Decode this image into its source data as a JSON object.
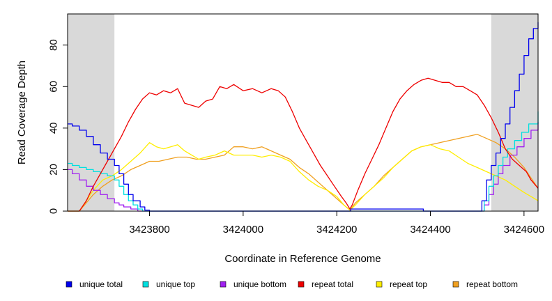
{
  "chart_data": {
    "type": "line",
    "title": "",
    "xlabel": "Coordinate in Reference Genome",
    "ylabel": "Read Coverage Depth",
    "xlim": [
      3423625,
      3424630
    ],
    "ylim": [
      0,
      95
    ],
    "x_ticks": [
      3423800,
      3424000,
      3424200,
      3424400,
      3424600
    ],
    "y_ticks": [
      0,
      20,
      40,
      60,
      80
    ],
    "x_tick_labels": [
      "3423800",
      "3424000",
      "3424200",
      "3424400",
      "3424600"
    ],
    "y_tick_labels": [
      "0",
      "20",
      "40",
      "60",
      "80"
    ],
    "shaded_regions": [
      [
        3423625,
        3423725
      ],
      [
        3424530,
        3424630
      ]
    ],
    "grid": false,
    "legend_position": "bottom",
    "series": [
      {
        "name": "unique total",
        "color": "#0000ee",
        "step": true,
        "points": [
          [
            3423625,
            42
          ],
          [
            3423635,
            41
          ],
          [
            3423650,
            39
          ],
          [
            3423665,
            36
          ],
          [
            3423680,
            32
          ],
          [
            3423695,
            28
          ],
          [
            3423710,
            25
          ],
          [
            3423725,
            22
          ],
          [
            3423735,
            18
          ],
          [
            3423745,
            13
          ],
          [
            3423755,
            8
          ],
          [
            3423765,
            5
          ],
          [
            3423780,
            2
          ],
          [
            3423790,
            0.5
          ],
          [
            3423800,
            0
          ],
          [
            3424225,
            0
          ],
          [
            3424230,
            1
          ],
          [
            3424380,
            1
          ],
          [
            3424385,
            0
          ],
          [
            3424505,
            0
          ],
          [
            3424510,
            5
          ],
          [
            3424520,
            15
          ],
          [
            3424530,
            22
          ],
          [
            3424540,
            28
          ],
          [
            3424550,
            35
          ],
          [
            3424560,
            42
          ],
          [
            3424570,
            50
          ],
          [
            3424580,
            58
          ],
          [
            3424590,
            66
          ],
          [
            3424600,
            75
          ],
          [
            3424610,
            83
          ],
          [
            3424620,
            88
          ],
          [
            3424630,
            91
          ]
        ]
      },
      {
        "name": "unique top",
        "color": "#00e0e0",
        "step": true,
        "points": [
          [
            3423625,
            23
          ],
          [
            3423635,
            22
          ],
          [
            3423650,
            21
          ],
          [
            3423665,
            20
          ],
          [
            3423680,
            19
          ],
          [
            3423695,
            18
          ],
          [
            3423710,
            17
          ],
          [
            3423725,
            15
          ],
          [
            3423735,
            12
          ],
          [
            3423745,
            8
          ],
          [
            3423755,
            5
          ],
          [
            3423765,
            3
          ],
          [
            3423775,
            1
          ],
          [
            3423785,
            0
          ],
          [
            3424505,
            0
          ],
          [
            3424515,
            5
          ],
          [
            3424525,
            12
          ],
          [
            3424535,
            17
          ],
          [
            3424545,
            22
          ],
          [
            3424555,
            26
          ],
          [
            3424565,
            30
          ],
          [
            3424580,
            34
          ],
          [
            3424595,
            38
          ],
          [
            3424610,
            42
          ],
          [
            3424630,
            48
          ]
        ]
      },
      {
        "name": "unique bottom",
        "color": "#a020f0",
        "step": true,
        "points": [
          [
            3423625,
            20
          ],
          [
            3423635,
            18
          ],
          [
            3423650,
            15
          ],
          [
            3423665,
            12
          ],
          [
            3423680,
            10
          ],
          [
            3423695,
            8
          ],
          [
            3423710,
            6
          ],
          [
            3423725,
            4
          ],
          [
            3423735,
            3
          ],
          [
            3423745,
            2
          ],
          [
            3423760,
            1
          ],
          [
            3423775,
            0
          ],
          [
            3424505,
            0
          ],
          [
            3424515,
            3
          ],
          [
            3424525,
            8
          ],
          [
            3424535,
            13
          ],
          [
            3424545,
            18
          ],
          [
            3424555,
            22
          ],
          [
            3424570,
            27
          ],
          [
            3424585,
            31
          ],
          [
            3424600,
            35
          ],
          [
            3424615,
            39
          ],
          [
            3424630,
            43
          ]
        ]
      },
      {
        "name": "repeat total",
        "color": "#ee0000",
        "step": false,
        "points": [
          [
            3423625,
            0
          ],
          [
            3423650,
            0
          ],
          [
            3423665,
            5
          ],
          [
            3423680,
            12
          ],
          [
            3423695,
            18
          ],
          [
            3423710,
            24
          ],
          [
            3423725,
            30
          ],
          [
            3423740,
            36
          ],
          [
            3423755,
            43
          ],
          [
            3423770,
            49
          ],
          [
            3423785,
            54
          ],
          [
            3423800,
            57
          ],
          [
            3423815,
            56
          ],
          [
            3423830,
            58
          ],
          [
            3423845,
            57
          ],
          [
            3423860,
            59
          ],
          [
            3423875,
            52
          ],
          [
            3423890,
            51
          ],
          [
            3423905,
            50
          ],
          [
            3423920,
            53
          ],
          [
            3423935,
            54
          ],
          [
            3423950,
            60
          ],
          [
            3423965,
            59
          ],
          [
            3423980,
            61
          ],
          [
            3424000,
            58
          ],
          [
            3424020,
            59
          ],
          [
            3424040,
            57
          ],
          [
            3424060,
            59
          ],
          [
            3424075,
            58
          ],
          [
            3424090,
            55
          ],
          [
            3424105,
            48
          ],
          [
            3424120,
            40
          ],
          [
            3424135,
            34
          ],
          [
            3424150,
            28
          ],
          [
            3424165,
            22
          ],
          [
            3424180,
            17
          ],
          [
            3424195,
            12
          ],
          [
            3424210,
            7
          ],
          [
            3424220,
            4
          ],
          [
            3424228,
            1
          ],
          [
            3424233,
            3
          ],
          [
            3424245,
            10
          ],
          [
            3424260,
            18
          ],
          [
            3424275,
            25
          ],
          [
            3424290,
            32
          ],
          [
            3424305,
            40
          ],
          [
            3424320,
            48
          ],
          [
            3424335,
            54
          ],
          [
            3424350,
            58
          ],
          [
            3424365,
            61
          ],
          [
            3424380,
            63
          ],
          [
            3424395,
            64
          ],
          [
            3424410,
            63
          ],
          [
            3424425,
            62
          ],
          [
            3424440,
            62
          ],
          [
            3424455,
            60
          ],
          [
            3424470,
            60
          ],
          [
            3424485,
            58
          ],
          [
            3424500,
            56
          ],
          [
            3424515,
            51
          ],
          [
            3424530,
            45
          ],
          [
            3424545,
            38
          ],
          [
            3424560,
            30
          ],
          [
            3424575,
            25
          ],
          [
            3424590,
            22
          ],
          [
            3424605,
            19
          ],
          [
            3424615,
            15
          ],
          [
            3424630,
            11
          ]
        ]
      },
      {
        "name": "repeat top",
        "color": "#ffee00",
        "step": false,
        "points": [
          [
            3423625,
            0
          ],
          [
            3423650,
            0
          ],
          [
            3423665,
            5
          ],
          [
            3423680,
            10
          ],
          [
            3423700,
            15
          ],
          [
            3423720,
            17
          ],
          [
            3423740,
            20
          ],
          [
            3423760,
            24
          ],
          [
            3423780,
            28
          ],
          [
            3423800,
            33
          ],
          [
            3423815,
            31
          ],
          [
            3423830,
            30
          ],
          [
            3423845,
            31
          ],
          [
            3423860,
            32
          ],
          [
            3423875,
            29
          ],
          [
            3423890,
            27
          ],
          [
            3423905,
            25
          ],
          [
            3423920,
            26
          ],
          [
            3423940,
            27
          ],
          [
            3423960,
            29
          ],
          [
            3423980,
            27
          ],
          [
            3424000,
            27
          ],
          [
            3424020,
            27
          ],
          [
            3424040,
            26
          ],
          [
            3424060,
            27
          ],
          [
            3424080,
            26
          ],
          [
            3424100,
            24
          ],
          [
            3424120,
            19
          ],
          [
            3424140,
            15
          ],
          [
            3424160,
            12
          ],
          [
            3424180,
            10
          ],
          [
            3424200,
            7
          ],
          [
            3424215,
            3
          ],
          [
            3424228,
            0.5
          ],
          [
            3424240,
            3
          ],
          [
            3424260,
            8
          ],
          [
            3424280,
            12
          ],
          [
            3424300,
            16
          ],
          [
            3424320,
            21
          ],
          [
            3424340,
            25
          ],
          [
            3424360,
            29
          ],
          [
            3424380,
            31
          ],
          [
            3424400,
            32
          ],
          [
            3424420,
            30
          ],
          [
            3424440,
            29
          ],
          [
            3424460,
            26
          ],
          [
            3424480,
            23
          ],
          [
            3424500,
            21
          ],
          [
            3424520,
            19
          ],
          [
            3424540,
            17
          ],
          [
            3424560,
            15
          ],
          [
            3424580,
            12
          ],
          [
            3424600,
            9
          ],
          [
            3424615,
            7
          ],
          [
            3424630,
            5
          ]
        ]
      },
      {
        "name": "repeat bottom",
        "color": "#f0a020",
        "step": false,
        "points": [
          [
            3423625,
            0
          ],
          [
            3423650,
            0
          ],
          [
            3423665,
            4
          ],
          [
            3423680,
            8
          ],
          [
            3423700,
            12
          ],
          [
            3423720,
            15
          ],
          [
            3423740,
            17
          ],
          [
            3423760,
            20
          ],
          [
            3423780,
            22
          ],
          [
            3423800,
            24
          ],
          [
            3423820,
            24
          ],
          [
            3423840,
            25
          ],
          [
            3423860,
            26
          ],
          [
            3423880,
            26
          ],
          [
            3423900,
            25
          ],
          [
            3423920,
            25
          ],
          [
            3423940,
            26
          ],
          [
            3423960,
            27
          ],
          [
            3423980,
            31
          ],
          [
            3424000,
            31
          ],
          [
            3424020,
            30
          ],
          [
            3424040,
            31
          ],
          [
            3424060,
            29
          ],
          [
            3424080,
            27
          ],
          [
            3424100,
            25
          ],
          [
            3424120,
            21
          ],
          [
            3424140,
            18
          ],
          [
            3424160,
            14
          ],
          [
            3424180,
            10
          ],
          [
            3424200,
            6
          ],
          [
            3424215,
            3
          ],
          [
            3424228,
            0.5
          ],
          [
            3424240,
            4
          ],
          [
            3424260,
            8
          ],
          [
            3424280,
            12
          ],
          [
            3424300,
            17
          ],
          [
            3424320,
            21
          ],
          [
            3424340,
            25
          ],
          [
            3424360,
            29
          ],
          [
            3424380,
            31
          ],
          [
            3424400,
            32
          ],
          [
            3424420,
            33
          ],
          [
            3424440,
            34
          ],
          [
            3424460,
            35
          ],
          [
            3424480,
            36
          ],
          [
            3424500,
            37
          ],
          [
            3424520,
            35
          ],
          [
            3424540,
            33
          ],
          [
            3424560,
            30
          ],
          [
            3424580,
            26
          ],
          [
            3424600,
            21
          ],
          [
            3424615,
            16
          ],
          [
            3424630,
            11
          ]
        ]
      }
    ]
  }
}
